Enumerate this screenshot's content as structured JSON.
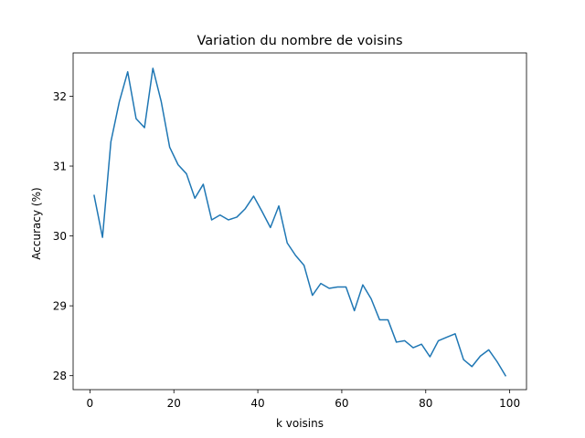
{
  "chart_data": {
    "type": "line",
    "title": "Variation du nombre de voisins",
    "xlabel": "k voisins",
    "ylabel": "Accuracy (%)",
    "xlim": [
      -4,
      104
    ],
    "ylim": [
      27.8,
      32.62
    ],
    "xticks": [
      0,
      20,
      40,
      60,
      80,
      100
    ],
    "yticks": [
      28,
      29,
      30,
      31,
      32
    ],
    "grid": false,
    "series": [
      {
        "color": "#1f77b4",
        "x": [
          1,
          3,
          5,
          7,
          9,
          11,
          13,
          15,
          17,
          19,
          21,
          23,
          25,
          27,
          29,
          31,
          33,
          35,
          37,
          39,
          41,
          43,
          45,
          47,
          49,
          51,
          53,
          55,
          57,
          59,
          61,
          63,
          65,
          67,
          69,
          71,
          73,
          75,
          77,
          79,
          81,
          83,
          85,
          87,
          89,
          91,
          93,
          95,
          97,
          99
        ],
        "y": [
          30.58,
          29.98,
          31.35,
          31.92,
          32.35,
          31.68,
          31.55,
          32.4,
          31.92,
          31.27,
          31.02,
          30.89,
          30.54,
          30.74,
          30.23,
          30.3,
          30.23,
          30.27,
          30.39,
          30.57,
          30.35,
          30.12,
          30.43,
          29.9,
          29.72,
          29.58,
          29.15,
          29.32,
          29.25,
          29.27,
          29.27,
          28.93,
          29.3,
          29.1,
          28.8,
          28.8,
          28.48,
          28.5,
          28.4,
          28.45,
          28.27,
          28.5,
          28.55,
          28.6,
          28.23,
          28.13,
          28.28,
          28.37,
          28.2,
          28.0
        ]
      }
    ]
  }
}
